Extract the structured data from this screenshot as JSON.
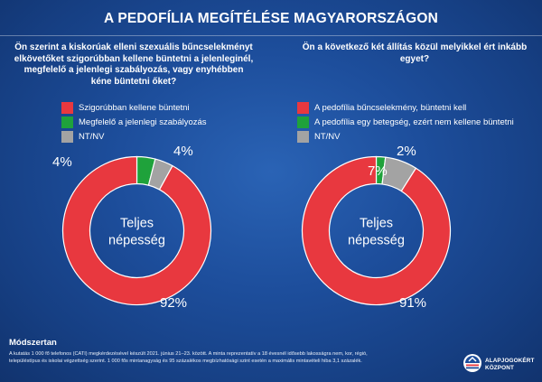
{
  "title": "A PEDOFÍLIA MEGÍTÉLÉSE MAGYARORSZÁGON",
  "colors": {
    "red": "#e8383f",
    "green": "#1fa23b",
    "gray": "#a3a3a3"
  },
  "chart_data": [
    {
      "type": "pie",
      "question": "Ön szerint a kiskorúak elleni szexuális bűncselekményt elkövetőket szigorúbban kellene büntetni a jelenleginél, megfelelő a jelenlegi szabályozás, vagy enyhébben kéne büntetni őket?",
      "center_label": [
        "Teljes",
        "népesség"
      ],
      "categories": [
        "Szigorúbban kellene büntetni",
        "Megfelelő a jelenlegi szabályozás",
        "NT/NV"
      ],
      "values": [
        92,
        4,
        4
      ],
      "value_labels": [
        "92%",
        "4%",
        "4%"
      ],
      "colors": [
        "#e8383f",
        "#1fa23b",
        "#a3a3a3"
      ],
      "legend_position": "top"
    },
    {
      "type": "pie",
      "question": "Ön a következő két állítás közül melyikkel ért inkább egyet?",
      "center_label": [
        "Teljes",
        "népesség"
      ],
      "categories": [
        "A pedofília bűncselekmény, büntetni kell",
        "A pedofília egy betegség, ezért nem kellene büntetni",
        "NT/NV"
      ],
      "values": [
        91,
        2,
        7
      ],
      "value_labels": [
        "91%",
        "2%",
        "7%"
      ],
      "colors": [
        "#e8383f",
        "#1fa23b",
        "#a3a3a3"
      ],
      "legend_position": "top"
    }
  ],
  "methodology": {
    "title": "Módszertan",
    "text": "A kutatás 1 000 fő telefonos (CATI) megkérdezésével készült 2021. június 21–23. között. A minta reprezentatív a 18 évesnél idősebb lakosságra nem, kor, régió, településtípus és iskolai végzettség szerint. 1 000 fős mintanagyság és 95 százalékos megbízhatósági szint esetén a maximális mintavételi hiba 3,1 százalék."
  },
  "logo": {
    "line1": "ALAPJOGOKÉRT",
    "line2": "KÖZPONT"
  }
}
